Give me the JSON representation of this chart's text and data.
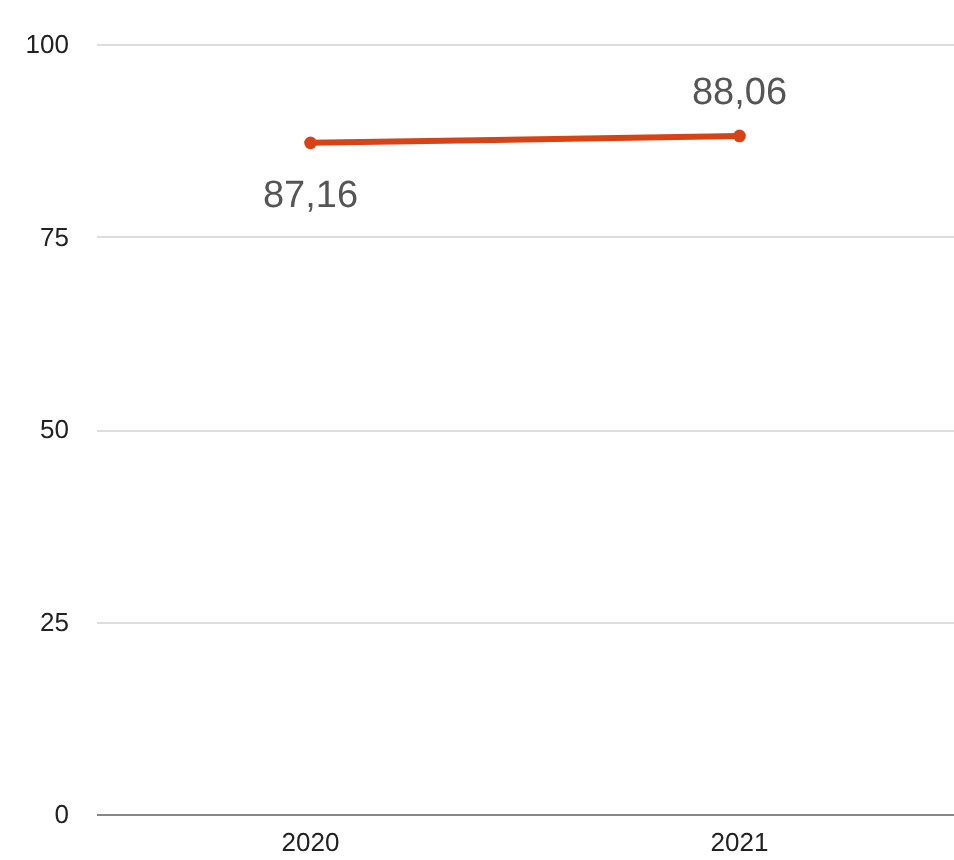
{
  "chart_data": {
    "type": "line",
    "categories": [
      "2020",
      "2021"
    ],
    "series": [
      {
        "color": "#d84315",
        "values": [
          87.16,
          88.06
        ],
        "value_labels": [
          "87,16",
          "88,06"
        ]
      }
    ],
    "ylim": [
      0,
      100
    ],
    "yticks": [
      0,
      25,
      50,
      75,
      100
    ],
    "grid": "y",
    "marker": "circle",
    "line_style": "solid"
  }
}
